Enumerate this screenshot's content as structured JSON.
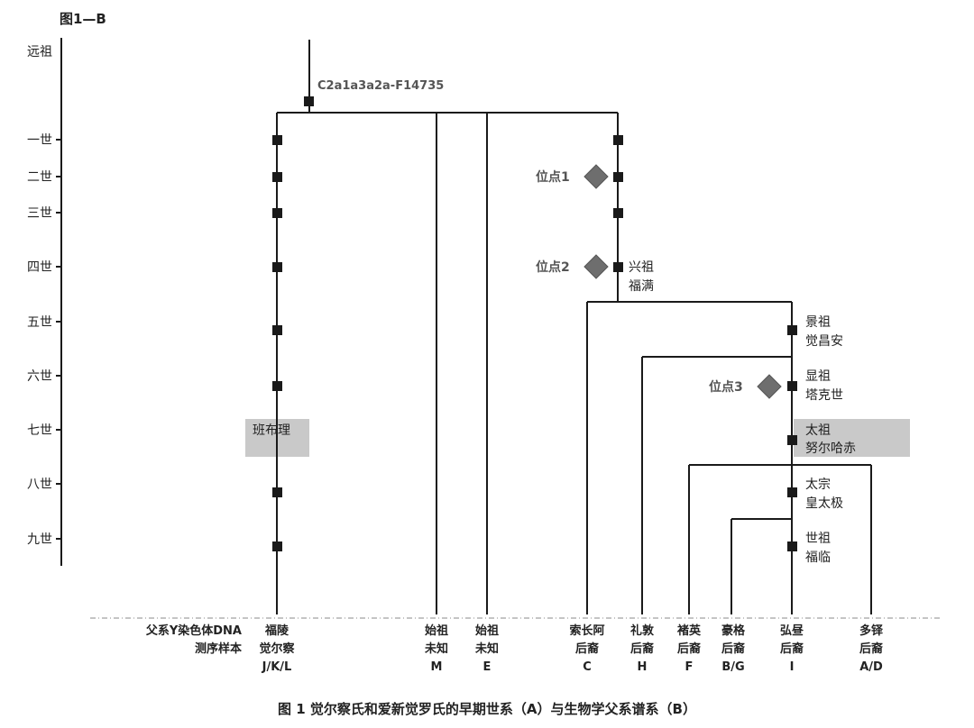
{
  "panel_label": "图1—B",
  "haplogroup": "C2a1a3a2a-F14735",
  "generations": [
    "远祖",
    "一世",
    "二世",
    "三世",
    "四世",
    "五世",
    "六世",
    "七世",
    "八世",
    "九世"
  ],
  "sites": [
    "位点1",
    "位点2",
    "位点3"
  ],
  "persons": {
    "xingzu": [
      "兴祖",
      "福满"
    ],
    "jingzu": [
      "景祖",
      "觉昌安"
    ],
    "xianzu": [
      "显祖",
      "塔克世"
    ],
    "taizu": [
      "太祖",
      "努尔哈赤"
    ],
    "taizong": [
      "太宗",
      "皇太极"
    ],
    "shizu": [
      "世祖",
      "福临"
    ],
    "banbuli": "班布理"
  },
  "sample_header": [
    "父系Y染色体DNA",
    "测序样本"
  ],
  "samples": [
    {
      "l1": "福陵",
      "l2": "觉尔察",
      "l3": "J/K/L"
    },
    {
      "l1": "始祖",
      "l2": "未知",
      "l3": "M"
    },
    {
      "l1": "始祖",
      "l2": "未知",
      "l3": "E"
    },
    {
      "l1": "索长阿",
      "l2": "后裔",
      "l3": "C"
    },
    {
      "l1": "礼敦",
      "l2": "后裔",
      "l3": "H"
    },
    {
      "l1": "褚英",
      "l2": "后裔",
      "l3": "F"
    },
    {
      "l1": "豪格",
      "l2": "后裔",
      "l3": "B/G"
    },
    {
      "l1": "弘昼",
      "l2": "后裔",
      "l3": "I"
    },
    {
      "l1": "多铎",
      "l2": "后裔",
      "l3": "A/D"
    }
  ],
  "caption": "图 1   觉尔察氏和爱新觉罗氏的早期世系（A）与生物学父系谱系（B）"
}
